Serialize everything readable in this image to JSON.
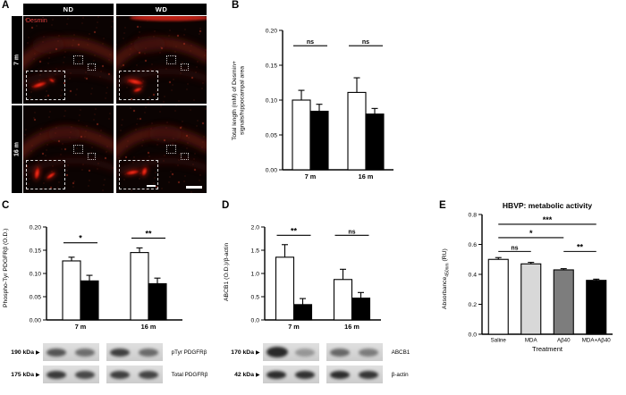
{
  "figure": {
    "panel_letters": {
      "A": "A",
      "B": "B",
      "C": "C",
      "D": "D",
      "E": "E"
    }
  },
  "icons": {
    "arrowhead": "▶"
  },
  "panel_a": {
    "stain_label": "Desmin",
    "columns": [
      "ND",
      "WD"
    ],
    "rows": [
      "7 m",
      "16 m"
    ]
  },
  "panel_c_blots": {
    "rows": [
      {
        "kda": "190 kDa",
        "label": "pTyr PDGFRβ"
      },
      {
        "kda": "175 kDa",
        "label": "Total PDGFRβ"
      }
    ]
  },
  "panel_d_blots": {
    "rows": [
      {
        "kda": "170 kDa",
        "label": "ABCB1"
      },
      {
        "kda": "42 kDa",
        "label": "β-actin"
      }
    ]
  },
  "chart_data": [
    {
      "id": "B",
      "type": "bar",
      "title": "",
      "ylabel": "Total length (mM) of Desmin+ signals/hippocampal area",
      "ylabel_lines": [
        "Total length (mM) of Desmin+",
        "signals/hippocampal area"
      ],
      "ylim": [
        0,
        0.2
      ],
      "yticks": [
        0,
        0.05,
        0.1,
        0.15,
        0.2
      ],
      "ytick_decimals": 2,
      "categories": [
        "7 m",
        "16 m"
      ],
      "series": [
        {
          "name": "ND",
          "color": "#ffffff",
          "values": [
            0.1,
            0.111
          ],
          "errors": [
            0.014,
            0.021
          ]
        },
        {
          "name": "WD",
          "color": "#000000",
          "values": [
            0.084,
            0.08
          ],
          "errors": [
            0.01,
            0.008
          ]
        }
      ],
      "brackets": [
        {
          "group": 0,
          "label": "ns",
          "y": 0.178
        },
        {
          "group": 1,
          "label": "ns",
          "y": 0.178
        }
      ]
    },
    {
      "id": "C",
      "type": "bar",
      "title": "",
      "ylabel": "Phospho-Tyr PDGFRβ (O.D.)",
      "ylabel_lines": [
        "Phospho-Tyr PDGFRβ (O.D.)"
      ],
      "ylim": [
        0,
        0.2
      ],
      "yticks": [
        0,
        0.05,
        0.1,
        0.15,
        0.2
      ],
      "ytick_decimals": 2,
      "categories": [
        "7 m",
        "16 m"
      ],
      "series": [
        {
          "name": "ND",
          "color": "#ffffff",
          "values": [
            0.127,
            0.145
          ],
          "errors": [
            0.008,
            0.01
          ]
        },
        {
          "name": "WD",
          "color": "#000000",
          "values": [
            0.084,
            0.078
          ],
          "errors": [
            0.012,
            0.012
          ]
        }
      ],
      "brackets": [
        {
          "group": 0,
          "label": "*",
          "y": 0.166
        },
        {
          "group": 1,
          "label": "**",
          "y": 0.176
        }
      ]
    },
    {
      "id": "D",
      "type": "bar",
      "title": "",
      "ylabel": "ABCB1 (O.D.)/β-actin",
      "ylabel_lines": [
        "ABCB1 (O.D.)/β-actin"
      ],
      "ylim": [
        0,
        2.0
      ],
      "yticks": [
        0,
        0.5,
        1.0,
        1.5,
        2.0
      ],
      "ytick_decimals": 1,
      "categories": [
        "7 m",
        "16 m"
      ],
      "series": [
        {
          "name": "ND",
          "color": "#ffffff",
          "values": [
            1.35,
            0.87
          ],
          "errors": [
            0.27,
            0.22
          ]
        },
        {
          "name": "WD",
          "color": "#000000",
          "values": [
            0.33,
            0.47
          ],
          "errors": [
            0.13,
            0.12
          ]
        }
      ],
      "brackets": [
        {
          "group": 0,
          "label": "**",
          "y": 1.82
        },
        {
          "group": 1,
          "label": "ns",
          "y": 1.82
        }
      ]
    },
    {
      "id": "E",
      "type": "bar",
      "title": "HBVP: metabolic activity",
      "xlabel": "Treatment",
      "ylabel": "Absorbance450nm (RU)",
      "ylabel_parts": [
        "Absorbance",
        "450nm",
        " (RU)"
      ],
      "ylim": [
        0,
        0.8
      ],
      "yticks": [
        0,
        0.2,
        0.4,
        0.6,
        0.8
      ],
      "ytick_decimals": 1,
      "categories": [
        "Saline",
        "MDA",
        "Aβ40",
        "MDA+Aβ40"
      ],
      "values": [
        0.5,
        0.47,
        0.43,
        0.36
      ],
      "errors": [
        0.012,
        0.01,
        0.008,
        0.008
      ],
      "colors": [
        "#ffffff",
        "#d8d8d8",
        "#7d7d7d",
        "#000000"
      ],
      "brackets": [
        {
          "from": 0,
          "to": 1,
          "label": "ns",
          "y": 0.553
        },
        {
          "from": 2,
          "to": 3,
          "label": "**",
          "y": 0.553
        },
        {
          "from": 0,
          "to": 2,
          "label": "*",
          "y": 0.645
        },
        {
          "from": 0,
          "to": 3,
          "label": "***",
          "y": 0.735
        }
      ]
    }
  ]
}
